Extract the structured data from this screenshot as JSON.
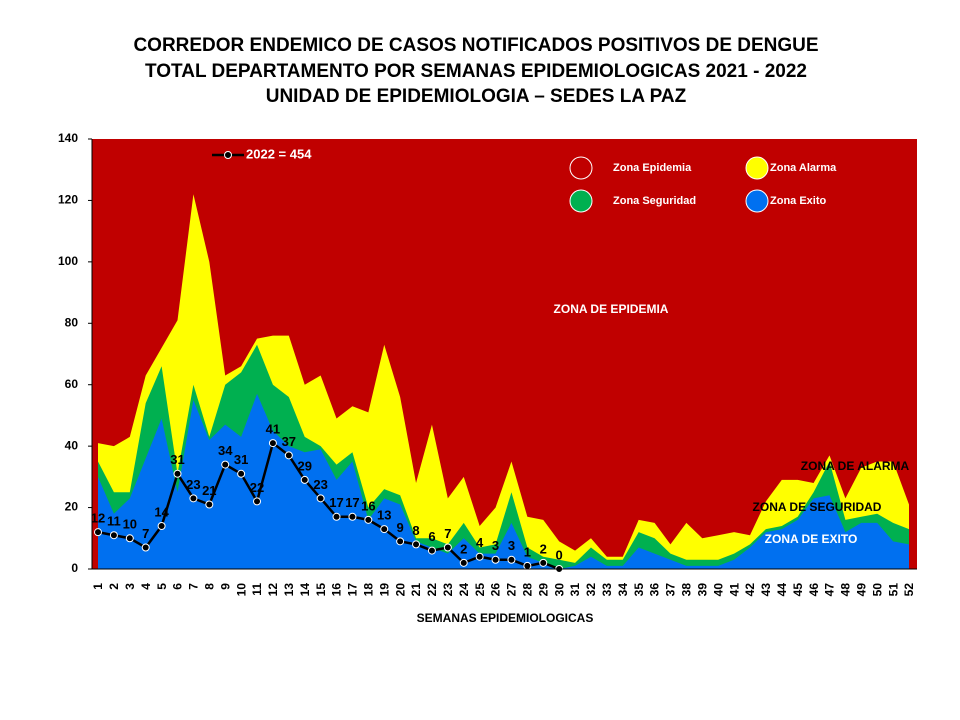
{
  "chart_data": {
    "type": "area",
    "title": [
      "CORREDOR ENDEMICO DE CASOS NOTIFICADOS POSITIVOS DE DENGUE",
      "TOTAL DEPARTAMENTO POR SEMANAS EPIDEMIOLOGICAS 2021 - 2022",
      "UNIDAD DE EPIDEMIOLOGIA – SEDES LA PAZ"
    ],
    "x_label": "SEMANAS EPIDEMIOLOGICAS",
    "categories": [
      "1",
      "2",
      "3",
      "4",
      "5",
      "6",
      "7",
      "8",
      "9",
      "10",
      "11",
      "12",
      "13",
      "14",
      "15",
      "16",
      "17",
      "18",
      "19",
      "20",
      "21",
      "22",
      "23",
      "24",
      "25",
      "26",
      "27",
      "28",
      "29",
      "30",
      "31",
      "32",
      "33",
      "34",
      "35",
      "36",
      "37",
      "38",
      "39",
      "40",
      "41",
      "42",
      "43",
      "44",
      "45",
      "46",
      "47",
      "48",
      "49",
      "50",
      "51",
      "52"
    ],
    "ylim": [
      0,
      140
    ],
    "yticks": [
      0,
      20,
      40,
      60,
      80,
      100,
      120,
      140
    ],
    "grid": false,
    "background_zone": {
      "name": "Zona Epidemia",
      "color": "#c00000"
    },
    "series": [
      {
        "name": "Zona Alarma",
        "color": "#ffff00",
        "values": [
          41,
          40,
          43,
          63,
          72,
          81,
          122,
          100,
          63,
          66,
          75,
          76,
          76,
          60,
          63,
          49,
          53,
          51,
          73,
          56,
          28,
          47,
          23,
          30,
          14,
          20,
          35,
          17,
          16,
          9,
          6,
          10,
          4,
          4,
          16,
          15,
          8,
          15,
          10,
          11,
          12,
          11,
          22,
          29,
          29,
          28,
          37,
          23,
          33,
          35,
          35,
          21
        ]
      },
      {
        "name": "Zona Seguridad",
        "color": "#00b050",
        "values": [
          35,
          25,
          25,
          54,
          66,
          31,
          60,
          43,
          60,
          64,
          73,
          60,
          56,
          43,
          40,
          34,
          38,
          20,
          26,
          24,
          10,
          10,
          8,
          15,
          7,
          8,
          25,
          7,
          4,
          3,
          2,
          7,
          3,
          3,
          12,
          10,
          5,
          3,
          3,
          3,
          5,
          8,
          13,
          14,
          17,
          25,
          35,
          16,
          17,
          18,
          15,
          13
        ]
      },
      {
        "name": "Zona Exito",
        "color": "#0070f0",
        "values": [
          30,
          18,
          23,
          36,
          49,
          25,
          55,
          42,
          47,
          43,
          57,
          45,
          40,
          38,
          39,
          29,
          35,
          16,
          23,
          21,
          9,
          7,
          5,
          10,
          5,
          5,
          15,
          4,
          2,
          0,
          1,
          4,
          1,
          1,
          7,
          5,
          3,
          1,
          1,
          1,
          3,
          7,
          12,
          13,
          16,
          23,
          24,
          12,
          15,
          15,
          9,
          8
        ]
      },
      {
        "name": "2022 = 454",
        "type": "line",
        "color": "#000000",
        "values": [
          12,
          11,
          10,
          7,
          14,
          31,
          23,
          21,
          34,
          31,
          22,
          41,
          37,
          29,
          23,
          17,
          17,
          16,
          13,
          9,
          8,
          6,
          7,
          2,
          4,
          3,
          3,
          1,
          2,
          0,
          null,
          null,
          null,
          null,
          null,
          null,
          null,
          null,
          null,
          null,
          null,
          null,
          null,
          null,
          null,
          null,
          null,
          null,
          null,
          null,
          null,
          null
        ]
      }
    ],
    "annotations": [
      {
        "text": "ZONA DE EPIDEMIA",
        "color": "#ffffff"
      },
      {
        "text": "ZONA DE ALARMA",
        "color": "#000000"
      },
      {
        "text": "ZONA DE  SEGURIDAD",
        "color": "#000000"
      },
      {
        "text": "ZONA DE  EXITO",
        "color": "#ffffff"
      }
    ]
  }
}
